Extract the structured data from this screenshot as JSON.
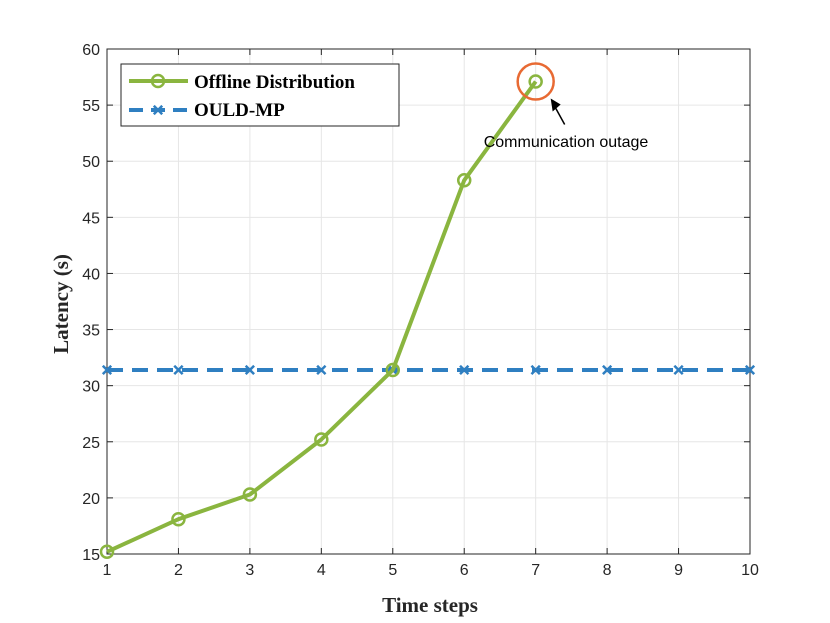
{
  "chart_data": {
    "type": "line",
    "title": "",
    "xlabel": "Time steps",
    "ylabel": "Latency (s)",
    "xlim": [
      1,
      10
    ],
    "ylim": [
      15,
      60
    ],
    "x_ticks": [
      1,
      2,
      3,
      4,
      5,
      6,
      7,
      8,
      9,
      10
    ],
    "y_ticks": [
      15,
      20,
      25,
      30,
      35,
      40,
      45,
      50,
      55,
      60
    ],
    "grid": true,
    "legend_position": "top-left",
    "series": [
      {
        "name": "Offline Distribution",
        "color": "#8ab53f",
        "line_style": "solid",
        "marker": "circle",
        "x": [
          1,
          2,
          3,
          4,
          5,
          6,
          7
        ],
        "y": [
          15.2,
          18.1,
          20.3,
          25.2,
          31.4,
          48.3,
          57.1
        ]
      },
      {
        "name": "OULD-MP",
        "color": "#2f7fc1",
        "line_style": "dashed",
        "marker": "x",
        "x": [
          1,
          2,
          3,
          4,
          5,
          6,
          7,
          8,
          9,
          10
        ],
        "y": [
          31.4,
          31.4,
          31.4,
          31.4,
          31.4,
          31.4,
          31.4,
          31.4,
          31.4,
          31.4
        ]
      }
    ],
    "annotations": [
      {
        "text": "Communication outage",
        "x": 7,
        "y": 57.1,
        "highlight_color": "#e86a33"
      }
    ]
  }
}
